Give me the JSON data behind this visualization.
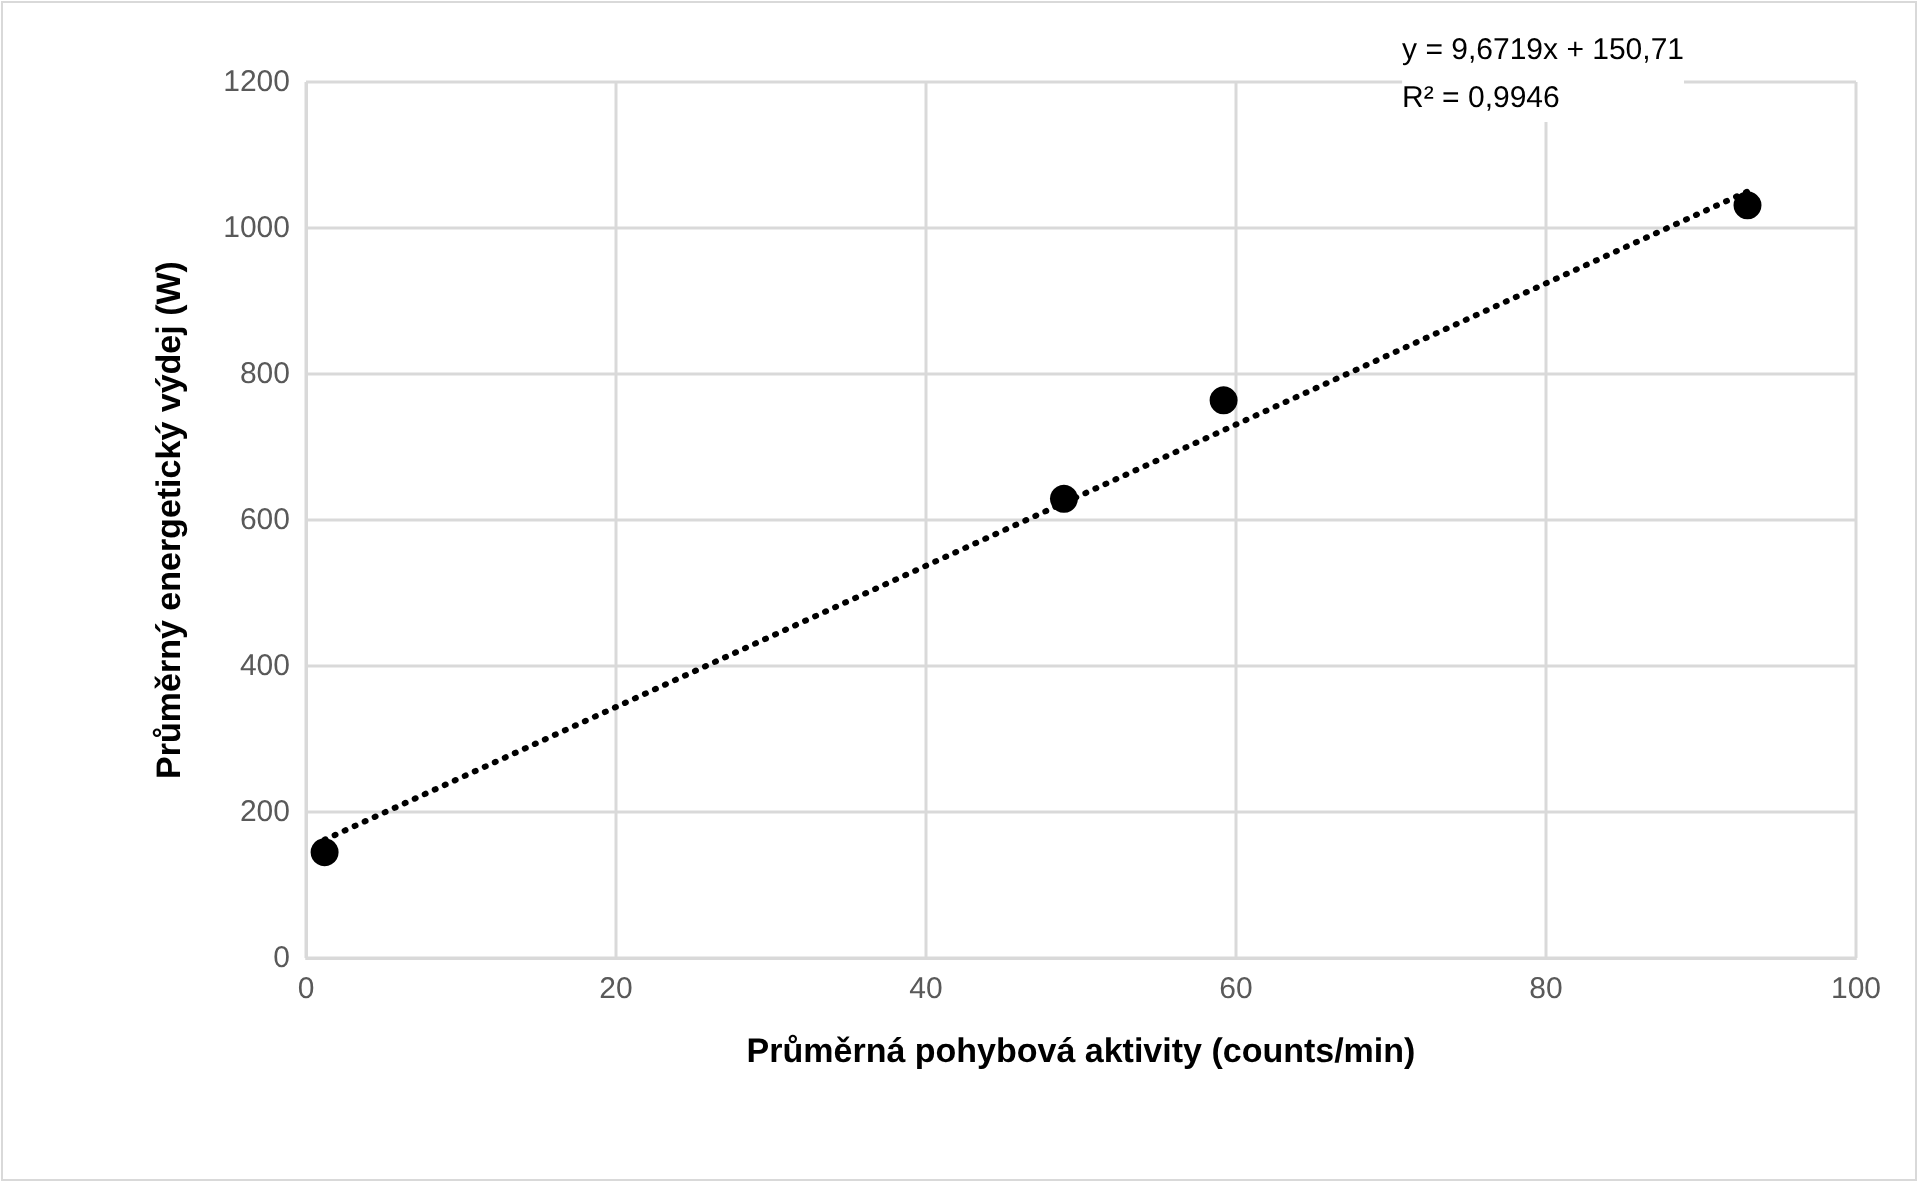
{
  "chart_data": {
    "type": "scatter",
    "xlabel": "Průměrná pohybová aktivity (counts/min)",
    "ylabel": "Průměrný energetický výdej (W)",
    "xlim": [
      0,
      100
    ],
    "xticks": [
      0,
      20,
      40,
      60,
      80,
      100
    ],
    "ylim": [
      0,
      1200
    ],
    "yticks": [
      0,
      200,
      400,
      600,
      800,
      1000,
      1200
    ],
    "grid": true,
    "marker": "circle",
    "series": [
      {
        "color": "#000000",
        "x": [
          1.2,
          48.9,
          59.2,
          93.0
        ],
        "values": [
          145,
          629,
          764,
          1031
        ]
      },
      {
        "type": "line",
        "color": "#000000",
        "line_style": "dotted",
        "marker": "none",
        "x": [
          1.2,
          93.0
        ],
        "values": [
          162,
          1050
        ]
      }
    ],
    "annotations": [
      "y = 9,6719x + 150,71\nR² = 0,9946"
    ]
  }
}
